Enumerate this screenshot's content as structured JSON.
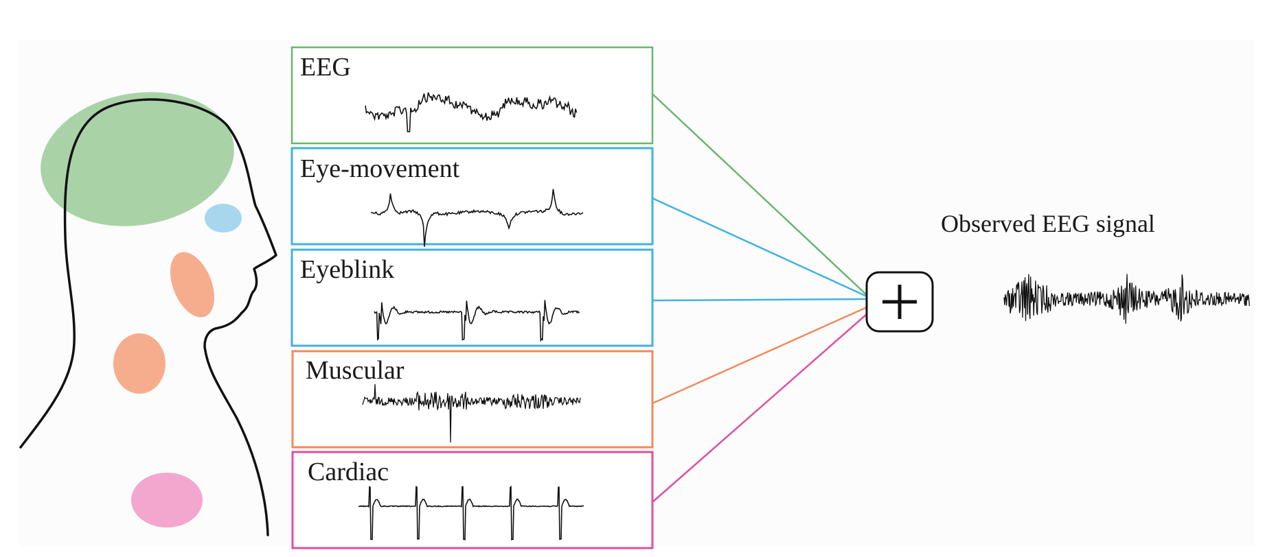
{
  "sources": [
    {
      "id": "eeg",
      "label": "EEG",
      "color": "#6ab66d",
      "region_color": "#a9d3a7"
    },
    {
      "id": "eye-movement",
      "label": "Eye-movement",
      "color": "#3fb2e0",
      "region_color": "#a8d6ee"
    },
    {
      "id": "eyeblink",
      "label": "Eyeblink",
      "color": "#3fb2e0"
    },
    {
      "id": "muscular",
      "label": "Muscular",
      "color": "#f08a5c",
      "region_color": "#f6ad8d"
    },
    {
      "id": "cardiac",
      "label": "Cardiac",
      "color": "#e04f9e",
      "region_color": "#f3a7cf"
    }
  ],
  "sum_symbol": "+",
  "output_label": "Observed EEG signal"
}
